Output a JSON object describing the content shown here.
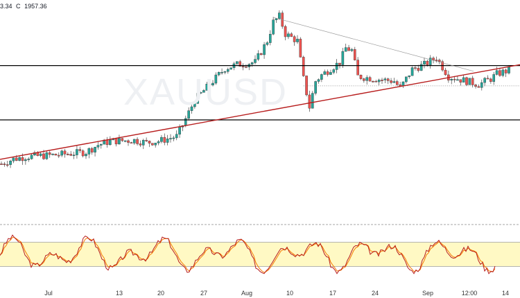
{
  "header": {
    "ohlc_fragment": "3.34",
    "close_label": "C",
    "close_value": "1957.36"
  },
  "watermark": {
    "symbol": "XAUUSD"
  },
  "colors": {
    "candle_up": "#26a69a",
    "candle_down": "#ef5350",
    "trendline": "#b71c1c",
    "horizontal": "#000000",
    "stoch_k": "#b71c1c",
    "stoch_d": "#f57c00",
    "stoch_band": "#fff9c4"
  },
  "chart_data": {
    "type": "candlestick",
    "instrument": "XAUUSD",
    "x_tick_labels": [
      "Jul",
      "13",
      "20",
      "27",
      "Aug",
      "10",
      "17",
      "24",
      "Sep",
      "12:00",
      "14"
    ],
    "y_range": [
      1655,
      2095
    ],
    "horizontal_levels": [
      1968,
      1853
    ],
    "dotted_level": 1925,
    "rising_trendline": {
      "from": {
        "date": "Jun 22",
        "price": 1770
      },
      "to": {
        "date": "Sep 15",
        "price": 1968
      }
    },
    "falling_trendline": {
      "from": {
        "date": "Aug 06",
        "price": 2070
      },
      "to": {
        "date": "Sep 03",
        "price": 1975
      }
    },
    "price_path": [
      {
        "d": "Jun 22",
        "p": 1760
      },
      {
        "d": "Jun 24",
        "p": 1770
      },
      {
        "d": "Jun 26",
        "p": 1775
      },
      {
        "d": "Jun 30",
        "p": 1778
      },
      {
        "d": "Jul 02",
        "p": 1780
      },
      {
        "d": "Jul 06",
        "p": 1785
      },
      {
        "d": "Jul 08",
        "p": 1800
      },
      {
        "d": "Jul 10",
        "p": 1808
      },
      {
        "d": "Jul 14",
        "p": 1810
      },
      {
        "d": "Jul 16",
        "p": 1805
      },
      {
        "d": "Jul 18",
        "p": 1808
      },
      {
        "d": "Jul 21",
        "p": 1818
      },
      {
        "d": "Jul 22",
        "p": 1842
      },
      {
        "d": "Jul 24",
        "p": 1895
      },
      {
        "d": "Jul 27",
        "p": 1935
      },
      {
        "d": "Jul 29",
        "p": 1962
      },
      {
        "d": "Jul 31",
        "p": 1970
      },
      {
        "d": "Aug 03",
        "p": 1975
      },
      {
        "d": "Aug 05",
        "p": 2020
      },
      {
        "d": "Aug 06",
        "p": 2060
      },
      {
        "d": "Aug 07",
        "p": 2072
      },
      {
        "d": "Aug 08",
        "p": 2035
      },
      {
        "d": "Aug 10",
        "p": 2020
      },
      {
        "d": "Aug 11",
        "p": 1940
      },
      {
        "d": "Aug 12",
        "p": 1880
      },
      {
        "d": "Aug 13",
        "p": 1935
      },
      {
        "d": "Aug 14",
        "p": 1948
      },
      {
        "d": "Aug 17",
        "p": 1975
      },
      {
        "d": "Aug 18",
        "p": 2005
      },
      {
        "d": "Aug 19",
        "p": 2000
      },
      {
        "d": "Aug 20",
        "p": 1945
      },
      {
        "d": "Aug 24",
        "p": 1938
      },
      {
        "d": "Aug 26",
        "p": 1935
      },
      {
        "d": "Aug 27",
        "p": 1920
      },
      {
        "d": "Aug 29",
        "p": 1960
      },
      {
        "d": "Aug 31",
        "p": 1970
      },
      {
        "d": "Sep 02",
        "p": 1985
      },
      {
        "d": "Sep 04",
        "p": 1945
      },
      {
        "d": "Sep 07",
        "p": 1935
      },
      {
        "d": "Sep 09",
        "p": 1928
      },
      {
        "d": "Sep 11",
        "p": 1940
      },
      {
        "d": "Sep 12",
        "p": 1950
      },
      {
        "d": "Sep 14",
        "p": 1958
      }
    ],
    "stochastic": {
      "upper": 80,
      "lower": 20,
      "k_line_color": "red",
      "d_line_color": "orange"
    }
  }
}
